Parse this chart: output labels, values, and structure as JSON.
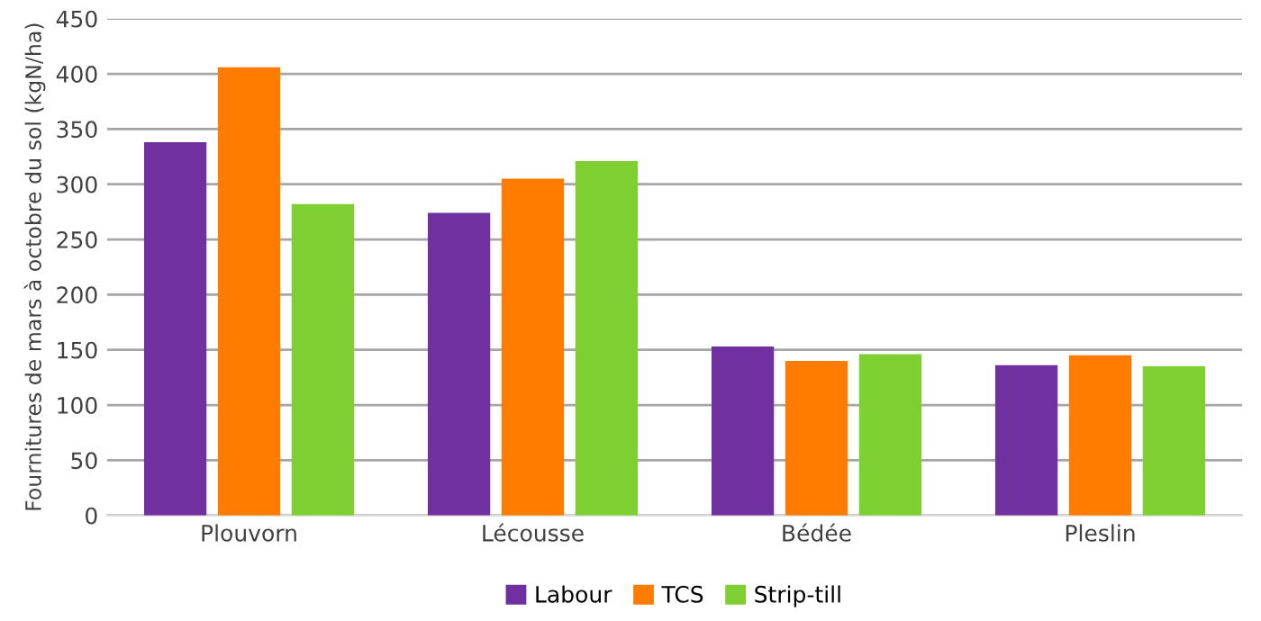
{
  "chart_data": {
    "type": "bar",
    "ylabel": "Fournitures de mars à octobre du sol (kgN/ha)",
    "categories": [
      "Plouvorn",
      "Lécousse",
      "Bédée",
      "Pleslin"
    ],
    "series": [
      {
        "name": "Labour",
        "color": "#7030a0",
        "values": [
          338,
          274,
          153,
          136
        ]
      },
      {
        "name": "TCS",
        "color": "#ff7c00",
        "values": [
          406,
          305,
          140,
          145
        ]
      },
      {
        "name": "Strip-till",
        "color": "#7ed032",
        "values": [
          282,
          321,
          146,
          135
        ]
      }
    ],
    "ylim": [
      0,
      450
    ],
    "yticks": [
      0,
      50,
      100,
      150,
      200,
      250,
      300,
      350,
      400,
      450
    ],
    "grid": "y",
    "legend": "bottom"
  }
}
